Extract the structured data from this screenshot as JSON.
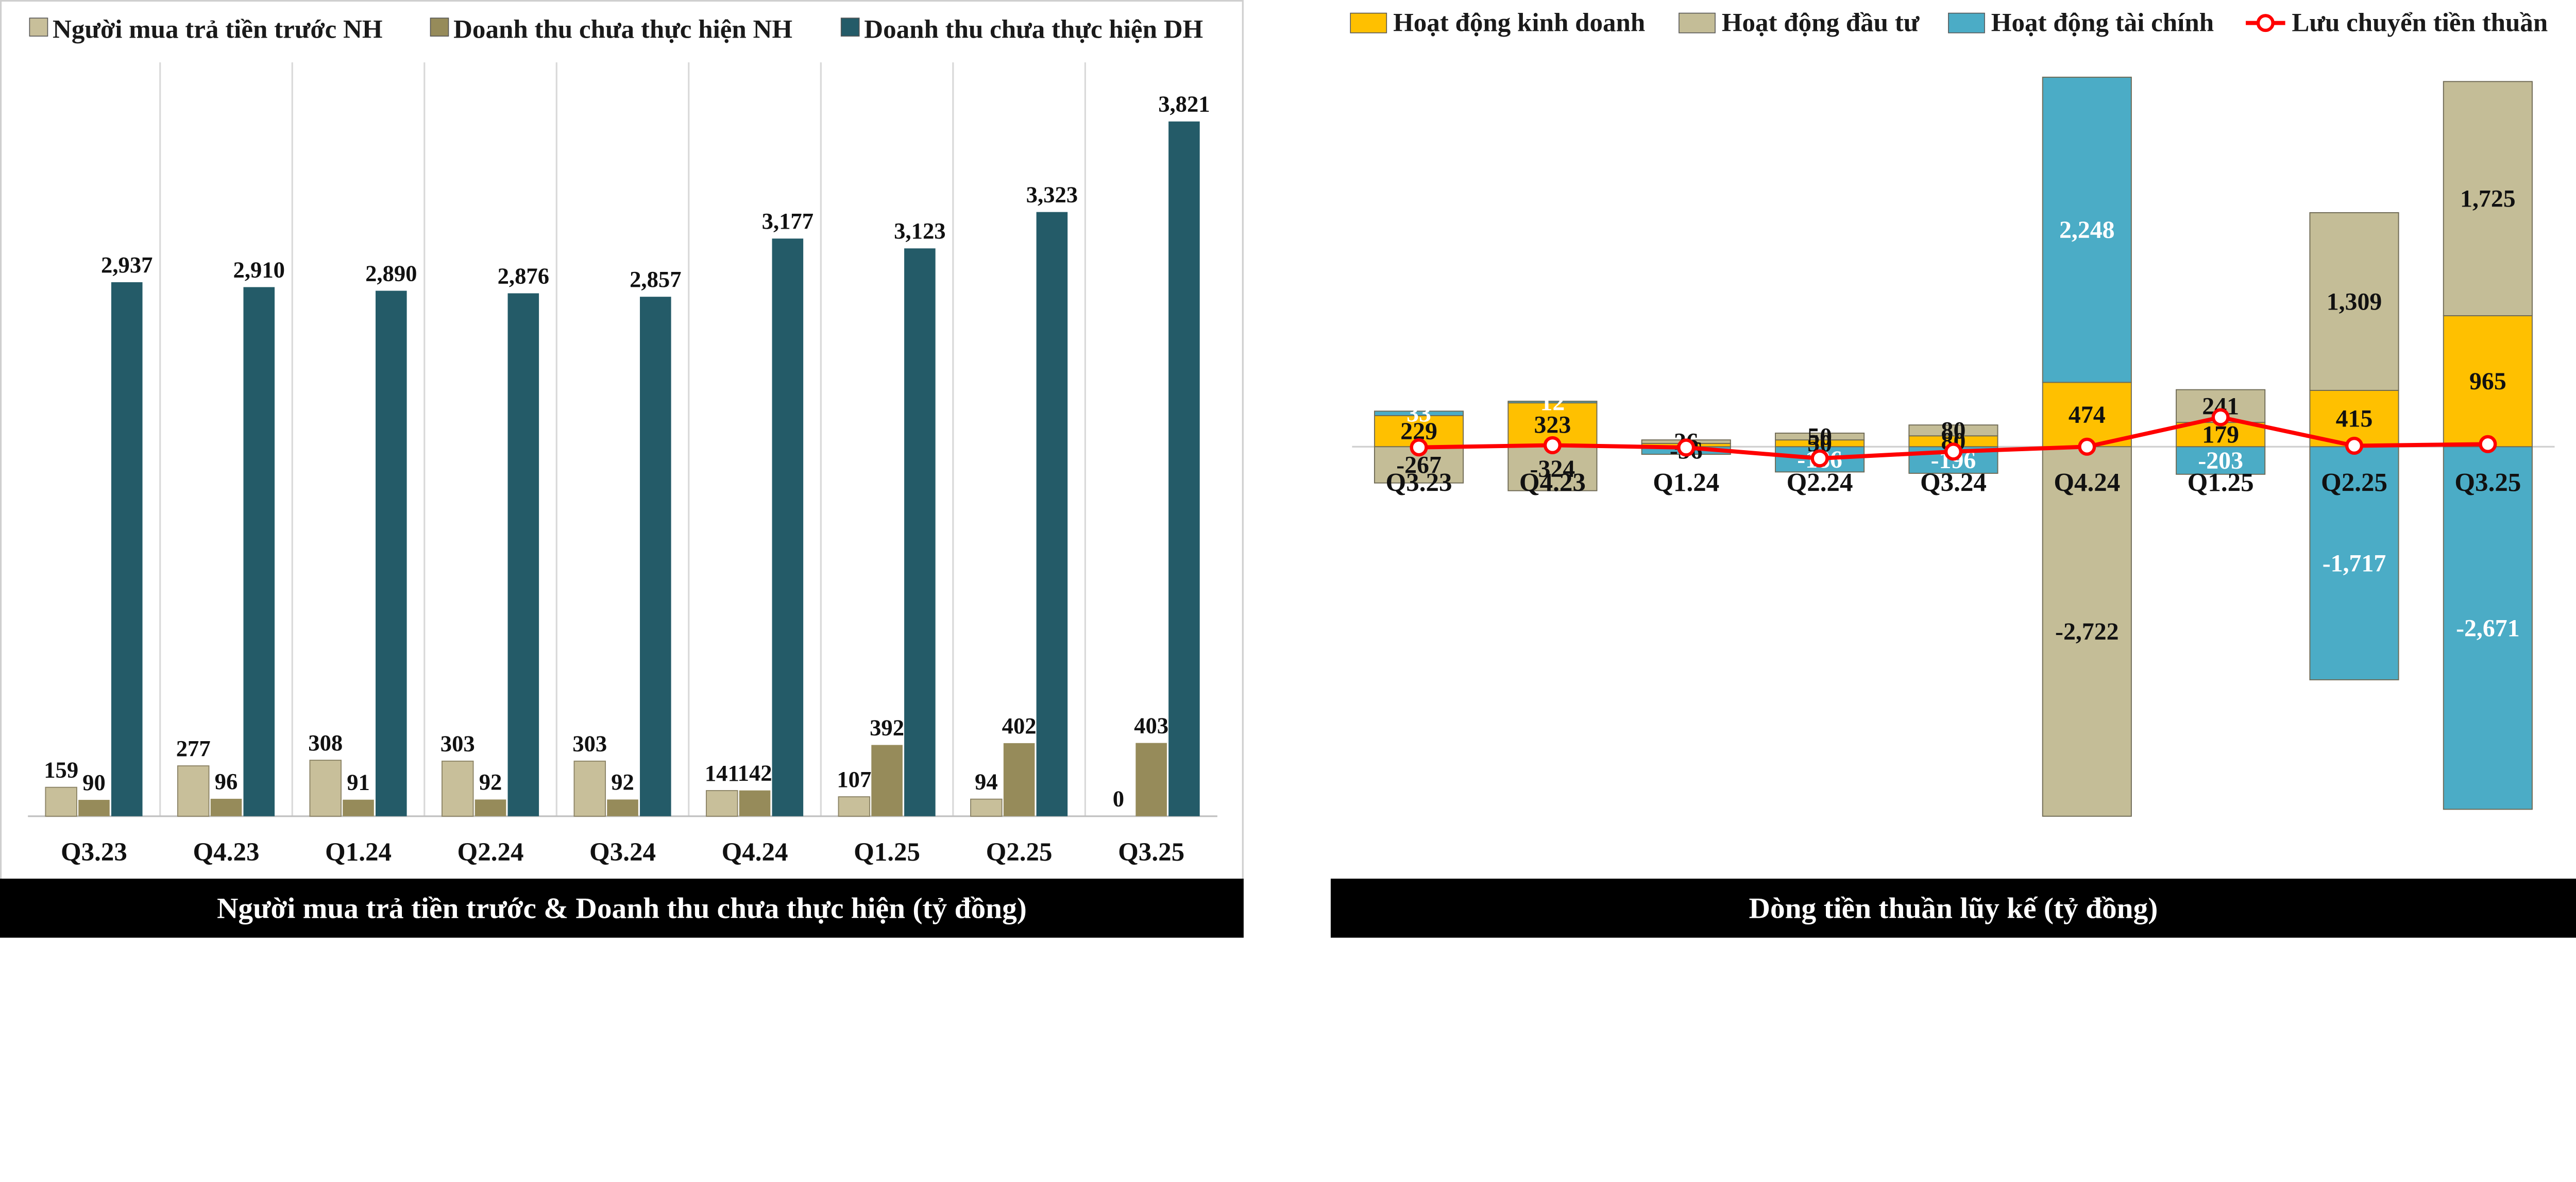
{
  "chart_data": [
    {
      "type": "bar",
      "title": "Người mua trả tiền trước & Doanh thu chưa thực hiện (tỷ đồng)",
      "categories": [
        "Q3.23",
        "Q4.23",
        "Q1.24",
        "Q2.24",
        "Q3.24",
        "Q4.24",
        "Q1.25",
        "Q2.25",
        "Q3.25"
      ],
      "series": [
        {
          "name": "Người mua trả tiền trước NH",
          "color": "#c8bf9a",
          "values": [
            159,
            277,
            308,
            303,
            303,
            141,
            107,
            94,
            0
          ]
        },
        {
          "name": "Doanh thu chưa thực hiện NH",
          "color": "#968b5a",
          "values": [
            90,
            96,
            91,
            92,
            92,
            142,
            392,
            402,
            403
          ]
        },
        {
          "name": "Doanh thu chưa thực hiện DH",
          "color": "#245b68",
          "values": [
            2937,
            2910,
            2890,
            2876,
            2857,
            3177,
            3123,
            3323,
            3821
          ]
        }
      ],
      "ylim": [
        0,
        4200
      ],
      "legend": "top",
      "grid": "vertical"
    },
    {
      "type": "bar",
      "title": "Dòng tiền thuần lũy kế (tỷ đồng)",
      "stacked": true,
      "categories": [
        "Q3.23",
        "Q4.23",
        "Q1.24",
        "Q2.24",
        "Q3.24",
        "Q4.24",
        "Q1.25",
        "Q2.25",
        "Q3.25"
      ],
      "series": [
        {
          "name": "Hoạt động kinh doanh",
          "color": "#ffc000",
          "values": [
            229,
            323,
            24,
            50,
            80,
            474,
            179,
            415,
            965
          ],
          "labels": [
            "229",
            "323",
            "",
            "50",
            "80",
            "474",
            "179",
            "415",
            "965"
          ]
        },
        {
          "name": "Hoạt động đầu tư",
          "color": "#c4bd97",
          "values": [
            -267,
            -324,
            26,
            50,
            80,
            -2722,
            241,
            1309,
            1725
          ],
          "labels": [
            "-267",
            "-324",
            "26",
            "50",
            "80",
            "-2,722",
            "241",
            "1,309",
            "1,725"
          ]
        },
        {
          "name": "Hoạt động tài chính",
          "color": "#4bacc6",
          "values": [
            33,
            12,
            -56,
            -186,
            -196,
            2248,
            -203,
            -1717,
            -2671
          ],
          "labels": [
            "33",
            "12",
            "-56",
            "-186",
            "-196",
            "2,248",
            "-203",
            "-1,717",
            "-2,671"
          ]
        }
      ],
      "line": {
        "name": "Lưu chuyển tiền thuần",
        "color": "#ff0000",
        "values": [
          -5,
          11,
          -6,
          -86,
          -36,
          0,
          217,
          7,
          19
        ]
      },
      "ylim": [
        -2900,
        3200
      ],
      "legend": "top"
    }
  ]
}
